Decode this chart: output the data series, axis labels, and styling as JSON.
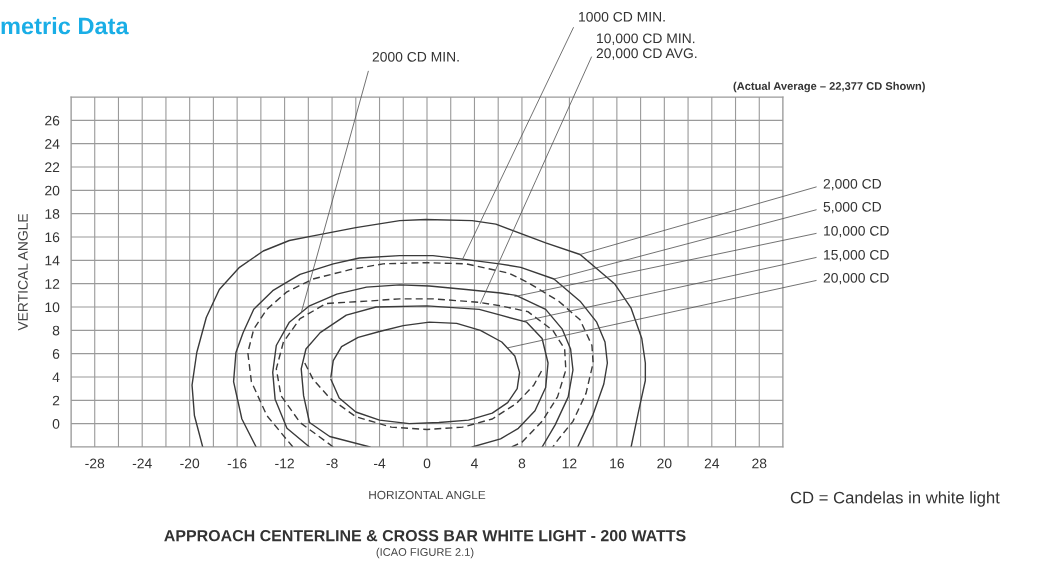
{
  "chart_data": {
    "type": "line",
    "title": "APPROACH CENTERLINE & CROSS BAR WHITE LIGHT - 200 WATTS",
    "subtitle": "(ICAO FIGURE 2.1)",
    "xlabel": "HORIZONTAL ANGLE",
    "ylabel": "VERTICAL ANGLE",
    "xlim": [
      -30,
      30
    ],
    "ylim": [
      -2,
      28
    ],
    "xticks": [
      {
        "value": -30,
        "label": null
      },
      -28,
      {
        "value": -26,
        "label": null
      },
      -24,
      {
        "value": -22,
        "label": null
      },
      -20,
      {
        "value": -18,
        "label": null
      },
      -16,
      {
        "value": -14,
        "label": null
      },
      -12,
      {
        "value": -10,
        "label": null
      },
      -8,
      {
        "value": -6,
        "label": null
      },
      -4,
      {
        "value": -2,
        "label": null
      },
      0,
      {
        "value": 2,
        "label": null
      },
      4,
      {
        "value": 6,
        "label": null
      },
      8,
      {
        "value": 10,
        "label": null
      },
      12,
      {
        "value": 14,
        "label": null
      },
      16,
      {
        "value": 18,
        "label": null
      },
      20,
      {
        "value": 22,
        "label": null
      },
      24,
      {
        "value": 26,
        "label": null
      },
      28,
      {
        "value": 30,
        "label": null
      }
    ],
    "yticks": [
      {
        "value": -2,
        "label": null
      },
      0,
      2,
      4,
      6,
      8,
      10,
      12,
      14,
      16,
      18,
      20,
      22,
      24,
      26,
      {
        "value": 28,
        "label": null
      }
    ],
    "grid": true,
    "series": [
      {
        "color": "#3a3a3a",
        "line_style": "solid",
        "x": [
          -18.9,
          -19.6,
          -19.8,
          -19.4,
          -18.6,
          -17.5,
          -15.8,
          -13.8,
          -11.6,
          -9.6,
          -6,
          -2.3,
          -0.1,
          3.8,
          5.8,
          10,
          12.9,
          15.8,
          17.2,
          18.1,
          18.4,
          18.4,
          17.9,
          17.2
        ],
        "values": [
          -2,
          0.7,
          3.3,
          6.1,
          9.1,
          11.5,
          13.4,
          14.8,
          15.7,
          16.1,
          16.8,
          17.4,
          17.5,
          17.4,
          17.1,
          15.5,
          14.5,
          12,
          9.9,
          7.3,
          5.2,
          3.7,
          1.4,
          -2
        ]
      },
      {
        "color": "#3a3a3a",
        "line_style": "solid",
        "x": [
          -14.4,
          -15.6,
          -16.3,
          -16.1,
          -15.5,
          -14.6,
          -13,
          -10.7,
          -7.9,
          -5.7,
          -2.3,
          0.5,
          3,
          6.1,
          7.9,
          10.7,
          12.9,
          14.3,
          15,
          15.2,
          14.9,
          14,
          12.7
        ],
        "values": [
          -2,
          0.4,
          3.6,
          6.1,
          7.8,
          9.8,
          11.4,
          12.8,
          13.7,
          14.2,
          14.4,
          14.4,
          14.1,
          13.7,
          13.4,
          12.4,
          10.5,
          8.7,
          7,
          5.2,
          3.4,
          0.8,
          -2
        ]
      },
      {
        "color": "#3a3a3a",
        "line_style": "dashed",
        "x": [
          -11.3,
          -13.5,
          -14.8,
          -15.1,
          -14.6,
          -13.5,
          -11.8,
          -9.6,
          -6.5,
          -3.7,
          -0.1,
          3.3,
          6.9,
          8.5,
          11.1,
          12.9,
          13.9,
          14,
          13.4,
          12.3,
          11.1,
          10.6
        ],
        "values": [
          -2,
          0.7,
          3.6,
          6.1,
          8.1,
          9.8,
          11.3,
          12.4,
          13.2,
          13.7,
          13.8,
          13.7,
          12.9,
          12.1,
          10.5,
          8.9,
          6.7,
          5.2,
          2.6,
          0.2,
          -1.3,
          -2
        ]
      },
      {
        "color": "#3a3a3a",
        "line_style": "solid",
        "x": [
          -9.9,
          -11.8,
          -12.8,
          -13,
          -12.7,
          -11.6,
          -9.9,
          -7.6,
          -5.1,
          -2.3,
          0.2,
          3.3,
          6.2,
          7.5,
          10,
          11.4,
          12.1,
          12.3,
          11.9,
          10.8,
          9.7
        ],
        "values": [
          -2,
          -0.4,
          2.1,
          4.4,
          6.7,
          8.7,
          10.1,
          11.1,
          11.7,
          11.9,
          11.8,
          11.5,
          11.2,
          11,
          9.8,
          8.1,
          6.4,
          4.6,
          2.3,
          -0.1,
          -2
        ]
      },
      {
        "color": "#3a3a3a",
        "line_style": "dashed",
        "x": [
          -7.9,
          -10.7,
          -12.3,
          -12.7,
          -12.1,
          -10.7,
          -8.5,
          -5.1,
          -2.3,
          0.5,
          4.4,
          6.2,
          8.5,
          10.6,
          11.6,
          11.7,
          11,
          9.7,
          8,
          7.1
        ],
        "values": [
          -2,
          0.1,
          2.4,
          4.7,
          7,
          9,
          10.3,
          10.5,
          10.7,
          10.7,
          10.4,
          10.1,
          9.6,
          8,
          6.4,
          4.6,
          2.3,
          0.2,
          -1.6,
          -2
        ]
      },
      {
        "color": "#3a3a3a",
        "line_style": "solid",
        "x": [
          -4.8,
          -8.2,
          -9.9,
          -10.4,
          -10.6,
          -10.2,
          -9,
          -6.8,
          -4.3,
          0,
          4.4,
          6.2,
          8.4,
          9.7,
          10.2,
          10,
          9.1,
          7.7,
          6.2,
          3.8
        ],
        "values": [
          -2,
          -1.1,
          0.1,
          2.4,
          4.7,
          6.4,
          7.8,
          9.3,
          10,
          10.1,
          9.8,
          9.3,
          8.7,
          7.3,
          5.2,
          3.1,
          1.1,
          -0.4,
          -1.3,
          -2
        ]
      },
      {
        "color": "#3a3a3a",
        "line_style": "dashed",
        "x": [
          -10.3,
          -9.6,
          -8.2,
          -6,
          -3,
          0,
          3,
          5.5,
          7.5,
          9,
          9.8
        ],
        "values": [
          5.2,
          3.8,
          2.2,
          0.6,
          -0.3,
          -0.5,
          -0.3,
          0.4,
          1.7,
          3.3,
          4.8
        ]
      },
      {
        "color": "#3a3a3a",
        "line_style": "solid",
        "x": [
          -8.1,
          -7.9,
          -7.2,
          -5.8,
          -4,
          -2,
          0.2,
          2.5,
          4.5,
          6.3,
          7.4,
          7.8,
          7.6,
          6.8,
          5.5,
          3.5,
          1,
          -1.5,
          -4,
          -6,
          -7.4,
          -8.1
        ],
        "values": [
          4,
          5.4,
          6.6,
          7.4,
          7.9,
          8.4,
          8.7,
          8.6,
          8,
          7,
          5.8,
          4.4,
          3,
          1.8,
          0.9,
          0.3,
          0.1,
          0,
          0.3,
          1,
          2.2,
          3.8
        ]
      }
    ],
    "annotations": [
      {
        "text": "2000 CD MIN.",
        "x": -10.6,
        "y": 9.5
      },
      {
        "text": "1000 CD MIN.",
        "x": 3,
        "y": 14.1
      },
      {
        "text": "10,000 CD MIN.\n20,000 CD AVG.",
        "x": 4.5,
        "y": 10.3
      },
      "(Actual Average – 22,377 CD Shown)",
      {
        "text": "2,000 CD",
        "x": 12.9,
        "y": 14.5
      },
      {
        "text": "5,000 CD",
        "x": 10.7,
        "y": 12.4
      },
      {
        "text": "10,000 CD",
        "x": 7.4,
        "y": 10.9
      },
      {
        "text": "15,000 CD",
        "x": 8.2,
        "y": 8.8
      },
      {
        "text": "20,000 CD",
        "x": 6.8,
        "y": 6.5
      },
      "CD = Candelas in white light",
      "metric Data"
    ]
  }
}
